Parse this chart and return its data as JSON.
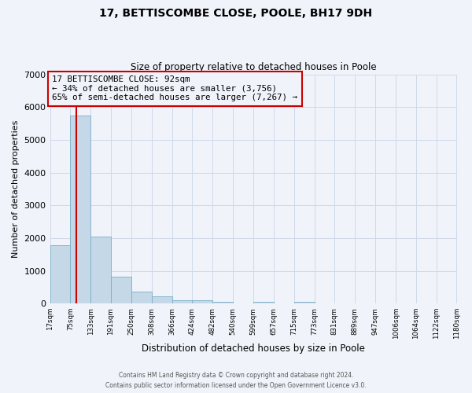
{
  "title": "17, BETTISCOMBE CLOSE, POOLE, BH17 9DH",
  "subtitle": "Size of property relative to detached houses in Poole",
  "xlabel": "Distribution of detached houses by size in Poole",
  "ylabel": "Number of detached properties",
  "bar_edges": [
    17,
    75,
    133,
    191,
    250,
    308,
    366,
    424,
    482,
    540,
    599,
    657,
    715,
    773,
    831,
    889,
    947,
    1006,
    1064,
    1122,
    1180
  ],
  "bar_heights": [
    1780,
    5750,
    2050,
    830,
    370,
    230,
    100,
    95,
    60,
    0,
    55,
    0,
    45,
    0,
    0,
    0,
    0,
    0,
    0,
    0
  ],
  "bar_color": "#c5d8e8",
  "bar_edge_color": "#7aaec8",
  "vline_x": 92,
  "vline_color": "#cc0000",
  "ylim": [
    0,
    7000
  ],
  "yticks": [
    0,
    1000,
    2000,
    3000,
    4000,
    5000,
    6000,
    7000
  ],
  "annotation_title": "17 BETTISCOMBE CLOSE: 92sqm",
  "annotation_line1": "← 34% of detached houses are smaller (3,756)",
  "annotation_line2": "65% of semi-detached houses are larger (7,267) →",
  "annotation_box_color": "#cc0000",
  "grid_color": "#d0d8e8",
  "bg_color": "#f0f4fa",
  "footer_line1": "Contains HM Land Registry data © Crown copyright and database right 2024.",
  "footer_line2": "Contains public sector information licensed under the Open Government Licence v3.0."
}
